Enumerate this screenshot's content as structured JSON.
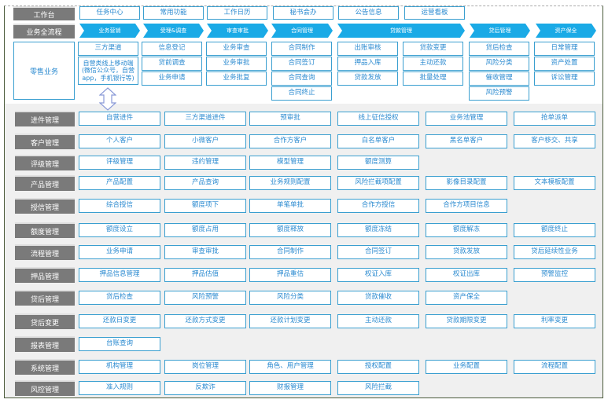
{
  "workbench": {
    "label": "工作台",
    "items": [
      "任务中心",
      "常用功能",
      "工作日历",
      "秘书会办",
      "公告信息",
      "运营看板"
    ]
  },
  "process": {
    "label": "业务全流程",
    "stages": [
      "业务营销",
      "受理&调查",
      "审查审批",
      "合同管理",
      "贷款管理",
      "贷后管理",
      "资产保全"
    ]
  },
  "retail": {
    "label": "零售业务",
    "columns": [
      [
        "三方渠道",
        "自营类线上移动端(微信公众号，自营app，手机银行等)"
      ],
      [
        "信息登记",
        "贷前调查",
        "业务申请"
      ],
      [
        "业务审查",
        "业务审批",
        "业务批复"
      ],
      [
        "合同制作",
        "合同签订",
        "合同查询",
        "合同终止"
      ],
      [
        "出账审核",
        "押品入库",
        "贷款发放"
      ],
      [
        "贷款变更",
        "主动还款",
        "批量处理"
      ],
      [
        "贷后检查",
        "风险分类",
        "催收管理",
        "风险预警"
      ],
      [
        "日常管理",
        "资产处置",
        "诉讼管理"
      ]
    ]
  },
  "icons": {
    "double_arrow": "double-up-down-arrow-icon"
  },
  "colors": {
    "accent": "#1aaae6",
    "box_border": "#3a9fd0",
    "label_bg": "#7a7a7a",
    "text": "#2a8ad0"
  },
  "modules": [
    {
      "label": "进件管理",
      "items": [
        "自营进件",
        "三方渠道进件",
        "预审批",
        "线上征信授权",
        "业务池管理",
        "抢单派单"
      ]
    },
    {
      "label": "客户管理",
      "items": [
        "个人客户",
        "小微客户",
        "合作方客户",
        "白名单客户",
        "黑名单客户",
        "客户移交、共享"
      ]
    },
    {
      "label": "评级管理",
      "items": [
        "评级管理",
        "违约管理",
        "模型管理",
        "额度测算"
      ]
    },
    {
      "label": "产品管理",
      "items": [
        "产品配置",
        "产品查询",
        "业务规则配置",
        "风险拦截项配置",
        "影像目录配置",
        "文本模板配置"
      ]
    },
    {
      "label": "授信管理",
      "items": [
        "综合授信",
        "额度项下",
        "单笔单批",
        "合作方授信",
        "合作方项目信息"
      ]
    },
    {
      "label": "额度管理",
      "items": [
        "额度设立",
        "额度占用",
        "额度释放",
        "额度冻结",
        "额度解冻",
        "额度终止"
      ]
    },
    {
      "label": "流程管理",
      "items": [
        "业务申请",
        "审查审批",
        "合同制作",
        "合同签订",
        "贷款发放",
        "贷后延续性业务"
      ]
    },
    {
      "label": "押品管理",
      "items": [
        "押品信息管理",
        "押品估值",
        "押品重估",
        "权证入库",
        "权证出库",
        "预警监控"
      ]
    },
    {
      "label": "贷后管理",
      "items": [
        "贷后检查",
        "风险预警",
        "风险分类",
        "贷款催收",
        "资产保全"
      ]
    },
    {
      "label": "贷后变更",
      "items": [
        "还款日变更",
        "还款方式变更",
        "还款计划变更",
        "主动还款",
        "贷款期限变更",
        "利率变更"
      ]
    },
    {
      "label": "报表管理",
      "items": [
        "台账查询"
      ]
    },
    {
      "label": "系统管理",
      "items": [
        "机构管理",
        "岗位管理",
        "角色、用户管理",
        "授权配置",
        "业务配置",
        "流程配置"
      ]
    },
    {
      "label": "风控管理",
      "items": [
        "准入规则",
        "反欺诈",
        "财报管理",
        "风险拦截"
      ]
    }
  ]
}
